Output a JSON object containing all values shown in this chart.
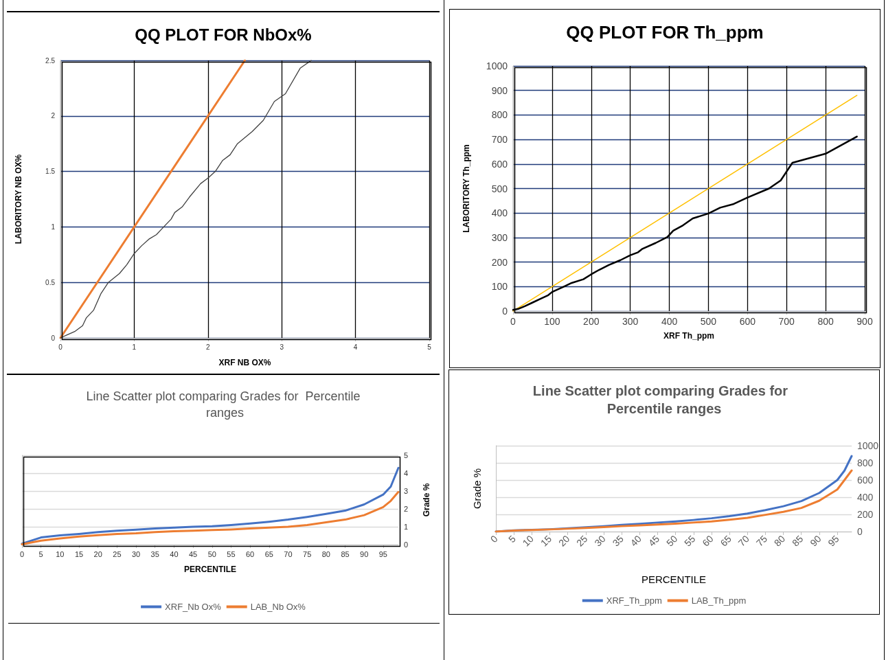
{
  "chart_data": [
    {
      "type": "line",
      "title": "QQ PLOT FOR NbOx%",
      "xlabel": "XRF NB OX%",
      "ylabel": "LABORITORY NB OX%",
      "xlim": [
        0,
        5
      ],
      "xticks": [
        0,
        1,
        2,
        3,
        4,
        5
      ],
      "ylim": [
        0,
        2.5
      ],
      "yticks": [
        0,
        0.5,
        1,
        1.5,
        2,
        2.5
      ],
      "grid": true,
      "series": [
        {
          "color": "#ed7d31",
          "x": [
            0,
            2.5
          ],
          "values": [
            0,
            2.5
          ]
        },
        {
          "color": "#404040",
          "x": [
            0,
            0.1,
            0.2,
            0.3,
            0.35,
            0.45,
            0.55,
            0.65,
            0.8,
            0.9,
            1.0,
            1.1,
            1.2,
            1.3,
            1.4,
            1.5,
            1.55,
            1.65,
            1.75,
            1.9,
            2.0,
            2.1,
            2.2,
            2.3,
            2.4,
            2.6,
            2.75,
            2.9,
            3.05,
            3.25,
            3.4
          ],
          "values": [
            0,
            0.03,
            0.06,
            0.11,
            0.18,
            0.25,
            0.4,
            0.5,
            0.58,
            0.66,
            0.76,
            0.83,
            0.89,
            0.93,
            1.0,
            1.07,
            1.13,
            1.18,
            1.27,
            1.39,
            1.44,
            1.5,
            1.6,
            1.65,
            1.75,
            1.86,
            1.96,
            2.13,
            2.2,
            2.43,
            2.5
          ]
        }
      ]
    },
    {
      "type": "line",
      "title": "QQ PLOT FOR Th_ppm",
      "xlabel": "XRF Th_ppm",
      "ylabel": "LABORITORY Th_ppm",
      "xlim": [
        0,
        900
      ],
      "xticks": [
        0,
        100,
        200,
        300,
        400,
        500,
        600,
        700,
        800,
        900
      ],
      "ylim": [
        0,
        1000
      ],
      "yticks": [
        0,
        100,
        200,
        300,
        400,
        500,
        600,
        700,
        800,
        900,
        1000
      ],
      "grid": true,
      "series": [
        {
          "color": "#ffc000",
          "x": [
            0,
            880
          ],
          "values": [
            0,
            880
          ]
        },
        {
          "color": "#000000",
          "x": [
            0,
            15,
            30,
            50,
            70,
            90,
            100,
            130,
            150,
            180,
            200,
            220,
            245,
            275,
            300,
            320,
            330,
            365,
            395,
            410,
            435,
            460,
            500,
            530,
            565,
            600,
            655,
            685,
            715,
            800,
            880
          ],
          "values": [
            5,
            10,
            20,
            35,
            50,
            65,
            78,
            100,
            115,
            130,
            150,
            168,
            188,
            208,
            228,
            240,
            253,
            278,
            302,
            328,
            350,
            378,
            398,
            422,
            437,
            463,
            500,
            533,
            605,
            642,
            712
          ]
        }
      ]
    },
    {
      "type": "line",
      "title": "Line Scatter plot comparing Grades for  Percentile ranges",
      "xlabel": "PERCENTILE",
      "ylabel": "Grade %",
      "xlim": [
        0,
        99
      ],
      "xticks": [
        0,
        5,
        10,
        15,
        20,
        25,
        30,
        35,
        40,
        45,
        50,
        55,
        60,
        65,
        70,
        75,
        80,
        85,
        90,
        95
      ],
      "ylim": [
        0,
        5
      ],
      "yticks": [
        0,
        1,
        2,
        3,
        4,
        5
      ],
      "grid": "y",
      "legend": "bottom",
      "x": [
        0,
        5,
        10,
        15,
        20,
        25,
        30,
        35,
        40,
        45,
        50,
        55,
        60,
        65,
        70,
        75,
        80,
        85,
        90,
        95,
        97,
        99
      ],
      "series": [
        {
          "name": "XRF_Nb Ox%",
          "color": "#4472c4",
          "values": [
            0.05,
            0.4,
            0.52,
            0.6,
            0.7,
            0.78,
            0.84,
            0.9,
            0.95,
            1.0,
            1.03,
            1.1,
            1.18,
            1.28,
            1.4,
            1.55,
            1.72,
            1.9,
            2.25,
            2.8,
            3.25,
            4.3
          ]
        },
        {
          "name": "LAB_Nb Ox%",
          "color": "#ed7d31",
          "values": [
            0.02,
            0.22,
            0.35,
            0.45,
            0.53,
            0.6,
            0.63,
            0.7,
            0.75,
            0.78,
            0.82,
            0.85,
            0.9,
            0.95,
            1.0,
            1.1,
            1.25,
            1.4,
            1.65,
            2.1,
            2.45,
            2.95
          ]
        }
      ]
    },
    {
      "type": "line",
      "title": "Line Scatter plot comparing Grades for  Percentile ranges",
      "xlabel": "PERCENTILE",
      "ylabel": "Grade %",
      "xlim": [
        0,
        99
      ],
      "xticks": [
        0,
        5,
        10,
        15,
        20,
        25,
        30,
        35,
        40,
        45,
        50,
        55,
        60,
        65,
        70,
        75,
        80,
        85,
        90,
        95
      ],
      "ylim": [
        0,
        1000
      ],
      "yticks": [
        0,
        200,
        400,
        600,
        800,
        1000
      ],
      "grid": "y",
      "legend": "bottom",
      "x": [
        0,
        5,
        10,
        15,
        20,
        25,
        30,
        35,
        40,
        45,
        50,
        55,
        60,
        65,
        70,
        75,
        80,
        85,
        90,
        95,
        97,
        99
      ],
      "series": [
        {
          "name": "XRF_Th_ppm",
          "color": "#4472c4",
          "values": [
            0,
            15,
            20,
            27,
            38,
            50,
            62,
            78,
            90,
            105,
            118,
            135,
            155,
            180,
            210,
            250,
            295,
            355,
            450,
            600,
            710,
            880
          ]
        },
        {
          "name": "LAB_Th_ppm",
          "color": "#ed7d31",
          "values": [
            0,
            12,
            18,
            25,
            33,
            42,
            52,
            63,
            72,
            82,
            92,
            105,
            118,
            138,
            160,
            195,
            230,
            275,
            360,
            490,
            600,
            712
          ]
        }
      ]
    }
  ]
}
